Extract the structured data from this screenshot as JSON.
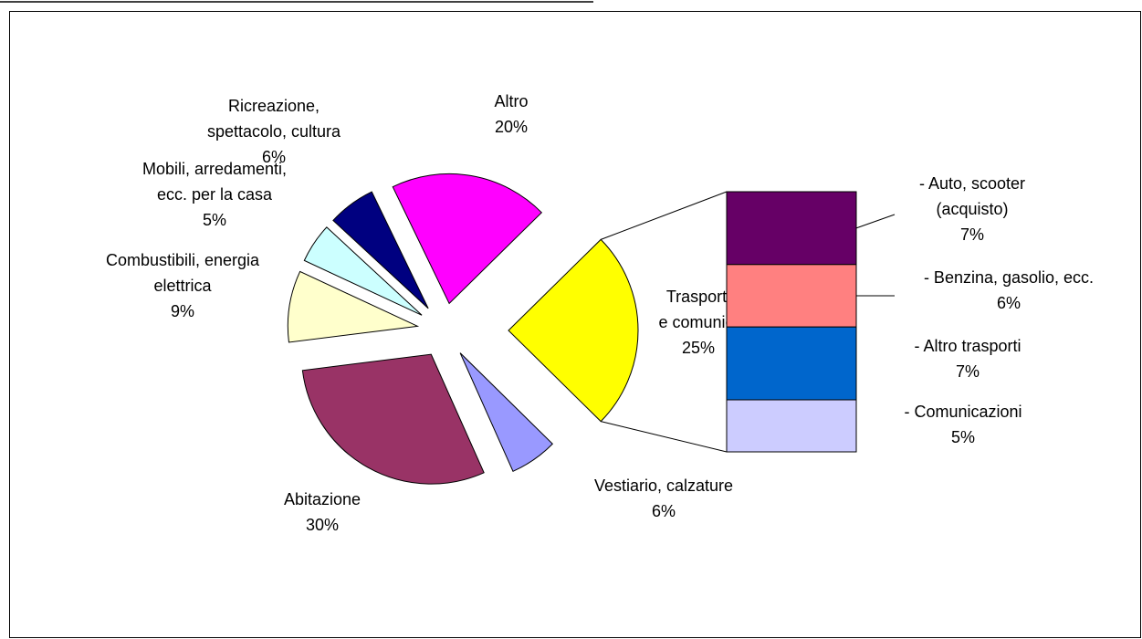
{
  "chart_data": {
    "type": "pie_of_bar",
    "categories": [
      "Trasporti\ne comunic.",
      "Vestiario, calzature",
      "Abitazione",
      "Combustibili, energia\nelettrica",
      "Mobili, arredamenti,\necc. per la casa",
      "Ricreazione,\nspettacolo, cultura",
      "Altro"
    ],
    "values": [
      25,
      6,
      30,
      9,
      5,
      6,
      20
    ],
    "value_labels": [
      "25%",
      "6%",
      "30%",
      "9%",
      "5%",
      "6%",
      "20%"
    ],
    "colors": [
      "#ffff00",
      "#9999ff",
      "#993366",
      "#ffffcc",
      "#ccffff",
      "#000080",
      "#ff00ff"
    ],
    "bar": {
      "categories": [
        "- Auto, scooter\n(acquisto)",
        "- Benzina, gasolio, ecc.",
        "- Altro trasporti",
        "- Comunicazioni"
      ],
      "values": [
        7,
        6,
        7,
        5
      ],
      "value_labels": [
        "7%",
        "6%",
        "7%",
        "5%"
      ],
      "colors": [
        "#660066",
        "#ff8080",
        "#0066cc",
        "#ccccff"
      ]
    }
  }
}
